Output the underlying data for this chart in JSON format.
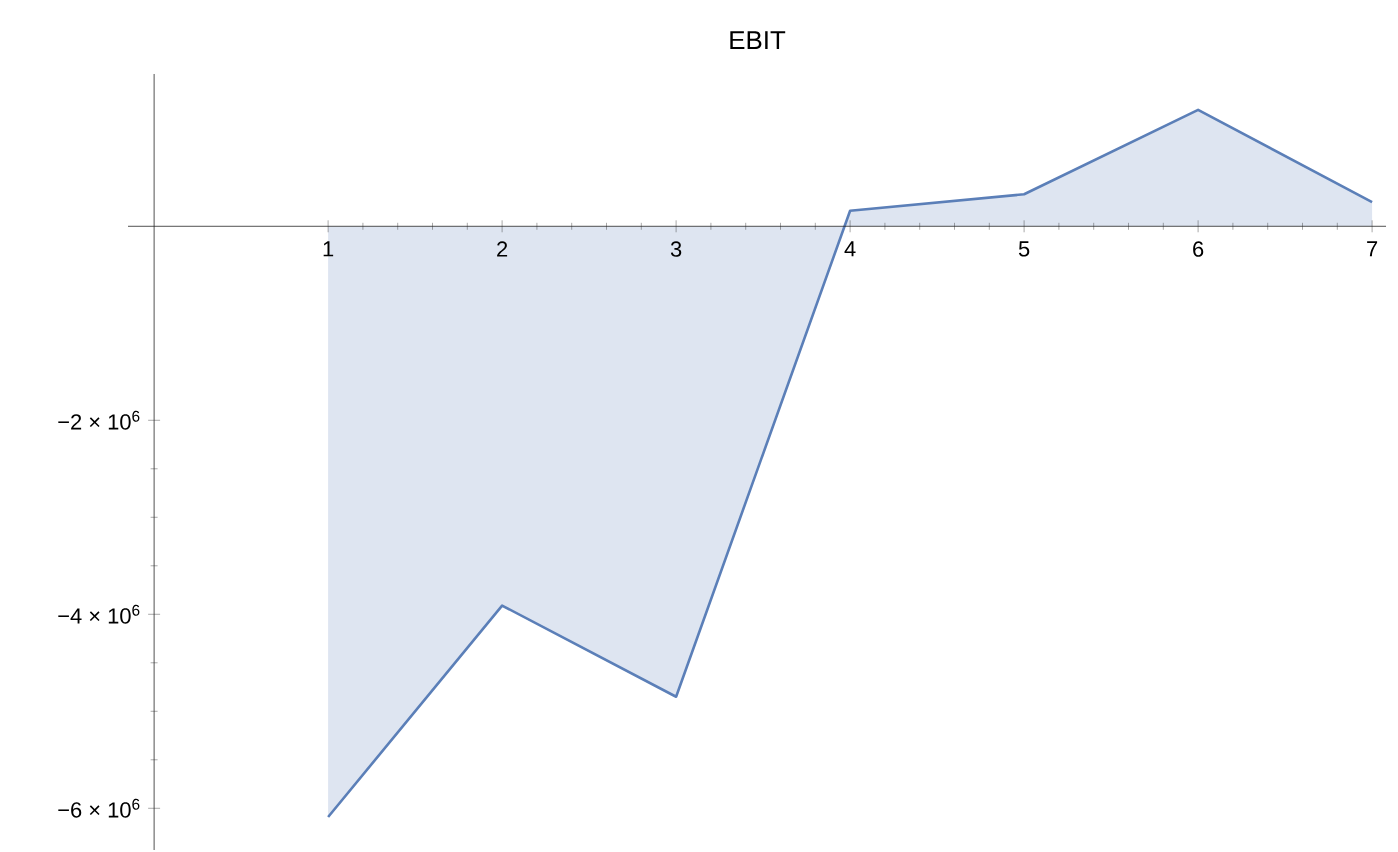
{
  "chart_data": {
    "type": "area",
    "title": "EBIT",
    "x": [
      1,
      2,
      3,
      4,
      5,
      6,
      7
    ],
    "values": [
      -6090000,
      -3910000,
      -4850000,
      160000,
      330000,
      1200000,
      250000
    ],
    "color": "#5b7fb8",
    "xlim": [
      -0.15,
      7.08
    ],
    "ylim": [
      -6430000,
      1570000
    ],
    "xticks": [
      1,
      2,
      3,
      4,
      5,
      6,
      7
    ],
    "yticks": [
      {
        "value": -6000000,
        "label": "−6 × 10$^{6}$"
      },
      {
        "value": -4000000,
        "label": "−4 × 10$^{6}$"
      },
      {
        "value": -2000000,
        "label": "−2 × 10$^{6}$"
      }
    ]
  }
}
